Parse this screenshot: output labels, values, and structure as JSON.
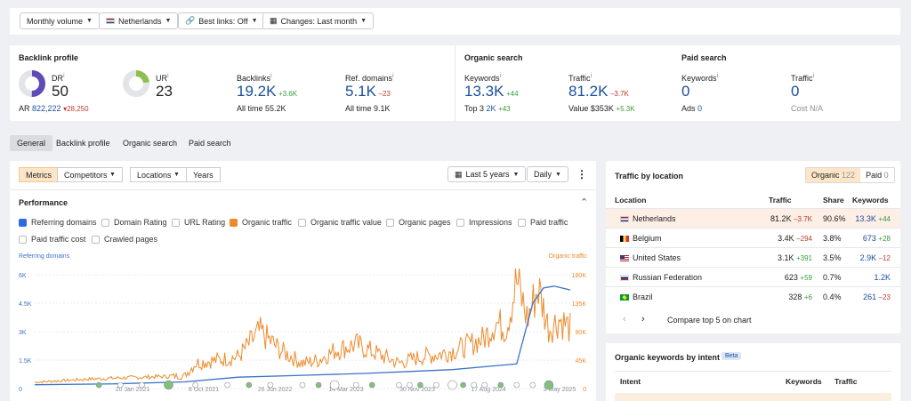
{
  "filters": {
    "volume": "Monthly volume",
    "country": "Netherlands",
    "best_links": "Best links: Off",
    "changes": "Changes: Last month"
  },
  "backlink_profile": {
    "title": "Backlink profile",
    "dr": {
      "label": "DR",
      "value": "50",
      "ar_label": "AR",
      "ar_value": "822,222",
      "ar_delta": "▾28,250",
      "fraction": 0.5
    },
    "ur": {
      "label": "UR",
      "value": "23",
      "fraction": 0.23
    },
    "backlinks": {
      "label": "Backlinks",
      "value": "19.2K",
      "delta": "+3.6K",
      "sub_label": "All time",
      "sub_value": "55.2K"
    },
    "ref_domains": {
      "label": "Ref. domains",
      "value": "5.1K",
      "delta": "–23",
      "sub_label": "All time",
      "sub_value": "9.1K"
    }
  },
  "organic_search": {
    "title": "Organic search",
    "keywords": {
      "label": "Keywords",
      "value": "13.3K",
      "delta": "+44",
      "sub_label": "Top 3",
      "sub_value": "2K",
      "sub_delta": "+43"
    },
    "traffic": {
      "label": "Traffic",
      "value": "81.2K",
      "delta": "–3.7K",
      "sub_label": "Value",
      "sub_value": "$353K",
      "sub_delta": "+5.3K"
    }
  },
  "paid_search": {
    "title": "Paid search",
    "keywords": {
      "label": "Keywords",
      "value": "0",
      "sub_label": "Ads",
      "sub_value": "0"
    },
    "traffic": {
      "label": "Traffic",
      "value": "0",
      "sub_label": "Cost",
      "sub_value": "N/A"
    }
  },
  "tabs": [
    "General",
    "Backlink profile",
    "Organic search",
    "Paid search"
  ],
  "chart_panel": {
    "segments": [
      "Metrics",
      "Competitors",
      "Locations",
      "Years"
    ],
    "period": "Last 5 years",
    "interval": "Daily",
    "performance_title": "Performance",
    "checkboxes": [
      {
        "label": "Referring domains",
        "state": "blue"
      },
      {
        "label": "Domain Rating",
        "state": "off"
      },
      {
        "label": "URL Rating",
        "state": "off"
      },
      {
        "label": "Organic traffic",
        "state": "orange"
      },
      {
        "label": "Organic traffic value",
        "state": "off"
      },
      {
        "label": "Organic pages",
        "state": "off"
      },
      {
        "label": "Impressions",
        "state": "off"
      },
      {
        "label": "Paid traffic",
        "state": "off"
      },
      {
        "label": "Paid traffic cost",
        "state": "off"
      },
      {
        "label": "Crawled pages",
        "state": "off"
      }
    ],
    "colors": {
      "ref_domains": "#3b73c7",
      "organic_traffic": "#ee8a2a"
    }
  },
  "chart_data": {
    "type": "line",
    "left_axis_label": "Referring domains",
    "right_axis_label": "Organic traffic",
    "left_ticks": [
      "6K",
      "4.5K",
      "3K",
      "1.5K",
      "0"
    ],
    "right_ticks": [
      "180K",
      "135K",
      "90K",
      "45K",
      "0"
    ],
    "x_ticks": [
      "20 Jan 2021",
      "8 Oct 2021",
      "26 Jun 2022",
      "14 Mar 2023",
      "30 Nov 2023",
      "17 Aug 2024",
      "3 May 2025"
    ],
    "ylim_left": [
      0,
      6000
    ],
    "ylim_right": [
      0,
      180000
    ],
    "series": [
      {
        "name": "Referring domains",
        "axis": "left",
        "x": [
          0,
          0.15,
          0.28,
          0.38,
          0.5,
          0.62,
          0.7,
          0.78,
          0.86,
          0.9,
          0.93,
          0.95,
          0.97,
          1.0
        ],
        "values": [
          200,
          250,
          350,
          600,
          700,
          800,
          900,
          1000,
          1200,
          1300,
          4500,
          5300,
          5400,
          5200
        ]
      },
      {
        "name": "Organic traffic",
        "axis": "right",
        "x": [
          0,
          0.1,
          0.2,
          0.28,
          0.3,
          0.38,
          0.42,
          0.46,
          0.5,
          0.53,
          0.56,
          0.6,
          0.64,
          0.68,
          0.72,
          0.76,
          0.8,
          0.84,
          0.86,
          0.88,
          0.9,
          0.92,
          0.94,
          0.96,
          0.98,
          1.0
        ],
        "values": [
          10000,
          15000,
          18000,
          20000,
          40000,
          50000,
          90000,
          60000,
          40000,
          45000,
          60000,
          70000,
          55000,
          40000,
          50000,
          55000,
          65000,
          80000,
          105000,
          95000,
          170000,
          110000,
          160000,
          95000,
          110000,
          95000
        ]
      }
    ]
  },
  "location_panel": {
    "title": "Traffic by location",
    "toggle": [
      {
        "label": "Organic",
        "count": "122"
      },
      {
        "label": "Paid",
        "count": "0"
      }
    ],
    "headers": [
      "Location",
      "Traffic",
      "Share",
      "Keywords"
    ],
    "rows": [
      {
        "flag": "nl",
        "name": "Netherlands",
        "traffic": "81.2K",
        "traffic_delta": "–3.7K",
        "share": "90.6%",
        "keywords": "13.3K",
        "kw_delta": "+44",
        "kw_delta_dir": "up"
      },
      {
        "flag": "be",
        "name": "Belgium",
        "traffic": "3.4K",
        "traffic_delta": "–294",
        "share": "3.8%",
        "keywords": "673",
        "kw_delta": "+28",
        "kw_delta_dir": "up"
      },
      {
        "flag": "us",
        "name": "United States",
        "traffic": "3.1K",
        "traffic_delta": "+391",
        "share": "3.5%",
        "keywords": "2.9K",
        "kw_delta": "–12",
        "kw_delta_dir": "down"
      },
      {
        "flag": "ru",
        "name": "Russian Federation",
        "traffic": "623",
        "traffic_delta": "+59",
        "share": "0.7%",
        "keywords": "1.2K",
        "kw_delta": "",
        "kw_delta_dir": "up"
      },
      {
        "flag": "br",
        "name": "Brazil",
        "traffic": "328",
        "traffic_delta": "+6",
        "share": "0.4%",
        "keywords": "261",
        "kw_delta": "–23",
        "kw_delta_dir": "down"
      }
    ],
    "compare_label": "Compare top 5 on chart"
  },
  "intent_panel": {
    "title": "Organic keywords by intent",
    "badge": "Beta",
    "headers": [
      "Intent",
      "Keywords",
      "Traffic"
    ]
  }
}
